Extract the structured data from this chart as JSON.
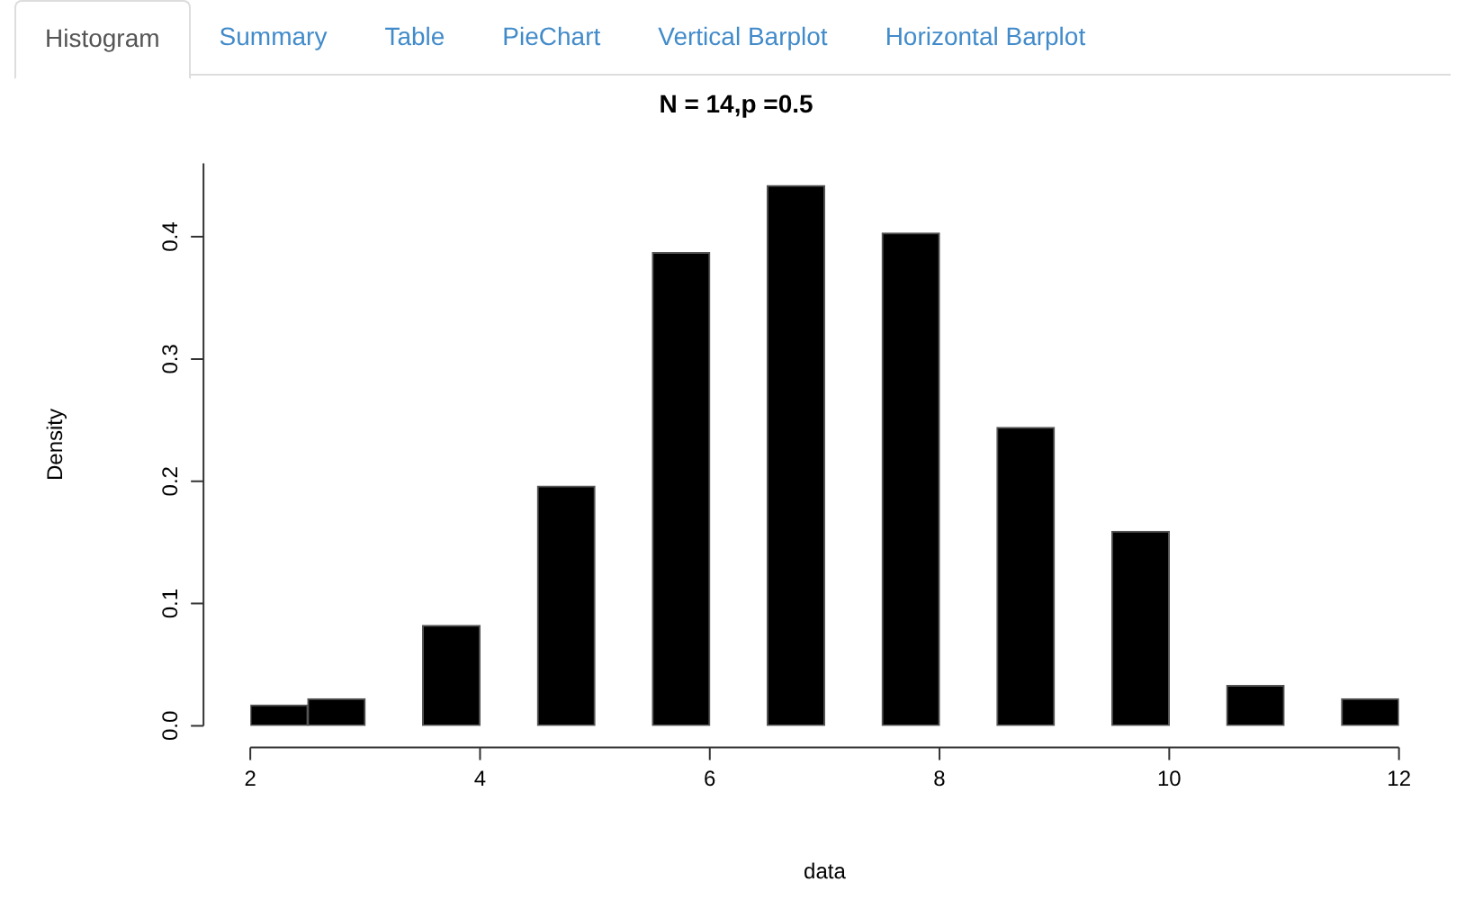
{
  "chart_data": {
    "type": "histogram",
    "title": "N = 14,p =0.5",
    "xlabel": "data",
    "ylabel": "Density",
    "annotations": [
      "Histogram",
      "Summary",
      "Table",
      "PieChart",
      "Vertical Barplot",
      "Horizontal Barplot"
    ],
    "bins": [
      2,
      2.5,
      3,
      3.5,
      4,
      4.5,
      5,
      5.5,
      6,
      6.5,
      7,
      7.5,
      8,
      8.5,
      9,
      9.5,
      10,
      10.5,
      11,
      11.5,
      12
    ],
    "values": [
      0.017,
      0.022,
      0,
      0.082,
      0,
      0.196,
      0,
      0.387,
      0,
      0.442,
      0,
      0.403,
      0,
      0.244,
      0,
      0.159,
      0,
      0.033,
      0,
      0.022
    ],
    "color": "#000000",
    "xlim": [
      2,
      12
    ],
    "xticks": [
      2,
      4,
      6,
      8,
      10,
      12
    ],
    "ylim": [
      0,
      0.46
    ],
    "yticks": [
      {
        "value": 0,
        "label": "0.0"
      },
      0.1,
      0.2,
      0.3,
      0.4
    ],
    "grid": false,
    "legend": false
  }
}
